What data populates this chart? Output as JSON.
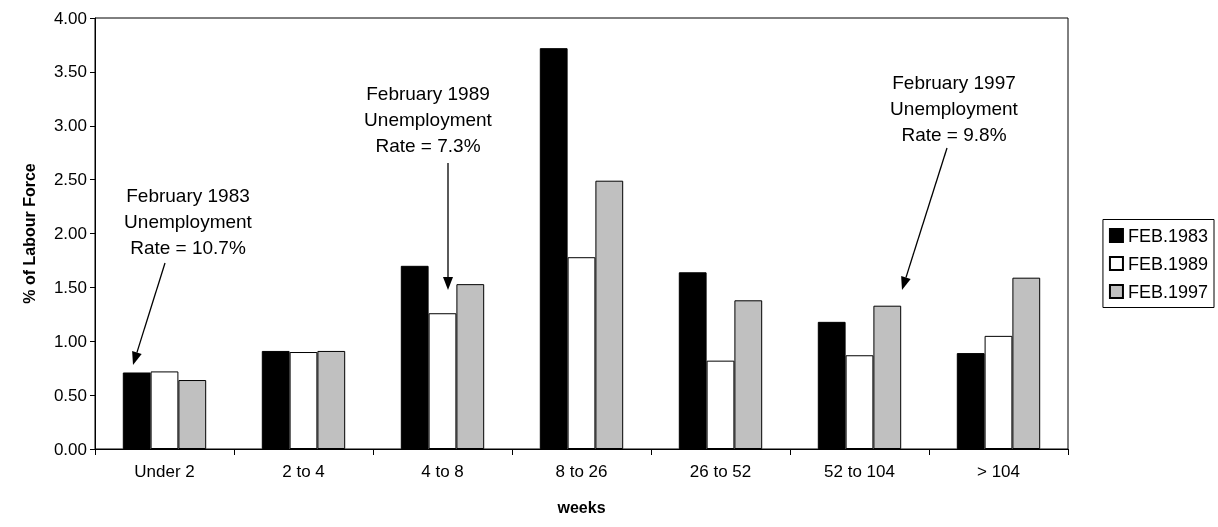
{
  "chart_data": {
    "type": "bar",
    "xlabel": "weeks",
    "ylabel": "% of Labour Force",
    "categories": [
      "Under 2",
      "2 to 4",
      "4 to 8",
      "8 to 26",
      "26 to 52",
      "52 to 104",
      "> 104"
    ],
    "series": [
      {
        "name": "FEB.1983",
        "color": "#000000",
        "values": [
          0.71,
          0.91,
          1.7,
          3.72,
          1.64,
          1.18,
          0.89
        ]
      },
      {
        "name": "FEB.1989",
        "color": "#ffffff",
        "values": [
          0.72,
          0.9,
          1.26,
          1.78,
          0.82,
          0.87,
          1.05
        ]
      },
      {
        "name": "FEB.1997",
        "color": "#c0c0c0",
        "values": [
          0.64,
          0.91,
          1.53,
          2.49,
          1.38,
          1.33,
          1.59
        ]
      }
    ],
    "ylim": [
      0,
      4
    ],
    "yticks": [
      {
        "value": 0,
        "label": "0.00"
      },
      {
        "value": 0.5,
        "label": "0.50"
      },
      {
        "value": 1,
        "label": "1.00"
      },
      {
        "value": 1.5,
        "label": "1.50"
      },
      {
        "value": 2,
        "label": "2.00"
      },
      {
        "value": 2.5,
        "label": "2.50"
      },
      {
        "value": 3,
        "label": "3.00"
      },
      {
        "value": 3.5,
        "label": "3.50"
      },
      {
        "value": 4,
        "label": "4.00"
      }
    ],
    "annotations": [
      "February 1983\nUnemployment\nRate = 10.7%",
      "February 1989\nUnemployment\nRate = 7.3%",
      "February 1997\nUnemployment\nRate = 9.8%"
    ],
    "grid": false,
    "legend": "right"
  }
}
